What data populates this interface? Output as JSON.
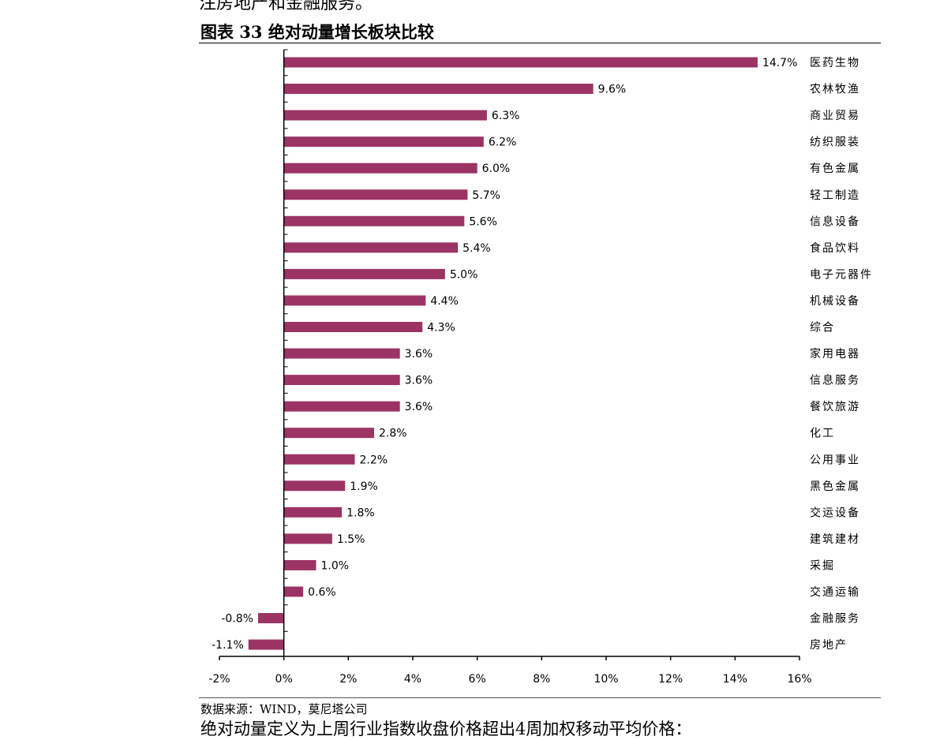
{
  "page": {
    "top_text": "注房地产和金融服务。",
    "figure_title": "图表 33 绝对动量增长板块比较",
    "source": "数据来源：WIND，莫尼塔公司",
    "bottom_text": "绝对动量定义为上周行业指数收盘价格超出4周加权移动平均价格："
  },
  "colors": {
    "bar": "#9b3465",
    "axis": "#000000"
  },
  "chart_data": {
    "type": "bar",
    "orientation": "horizontal",
    "categories": [
      "医药生物",
      "农林牧渔",
      "商业贸易",
      "纺织服装",
      "有色金属",
      "轻工制造",
      "信息设备",
      "食品饮料",
      "电子元器件",
      "机械设备",
      "综合",
      "家用电器",
      "信息服务",
      "餐饮旅游",
      "化工",
      "公用事业",
      "黑色金属",
      "交运设备",
      "建筑建材",
      "采掘",
      "交通运输",
      "金融服务",
      "房地产"
    ],
    "values": [
      14.7,
      9.6,
      6.3,
      6.2,
      6.0,
      5.7,
      5.6,
      5.4,
      5.0,
      4.4,
      4.3,
      3.6,
      3.6,
      3.6,
      2.8,
      2.2,
      1.9,
      1.8,
      1.5,
      1.0,
      0.6,
      -0.8,
      -1.1
    ],
    "value_labels": [
      "14.7%",
      "9.6%",
      "6.3%",
      "6.2%",
      "6.0%",
      "5.7%",
      "5.6%",
      "5.4%",
      "5.0%",
      "4.4%",
      "4.3%",
      "3.6%",
      "3.6%",
      "3.6%",
      "2.8%",
      "2.2%",
      "1.9%",
      "1.8%",
      "1.5%",
      "1.0%",
      "0.6%",
      "-0.8%",
      "-1.1%"
    ],
    "x_ticks": [
      -2,
      0,
      2,
      4,
      6,
      8,
      10,
      12,
      14,
      16
    ],
    "x_tick_labels": [
      "-2%",
      "0%",
      "2%",
      "4%",
      "6%",
      "8%",
      "10%",
      "12%",
      "14%",
      "16%"
    ],
    "xlim": [
      -2,
      16
    ],
    "title": "",
    "xlabel": "",
    "ylabel": "",
    "grid": false,
    "legend": "none"
  }
}
